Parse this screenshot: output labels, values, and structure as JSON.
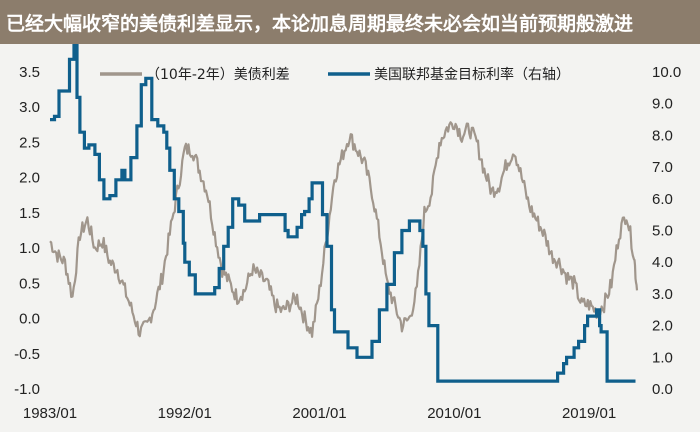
{
  "header": {
    "title": "已经大幅收窄的美债利差显示，本论加息周期最终未必会如当前预期般激进"
  },
  "colors": {
    "header_bg": "#8c7d6c",
    "spread_line": "#a0968c",
    "ffr_line": "#0f5f8c",
    "background": "#f3f3f1"
  },
  "chart_data": {
    "type": "line",
    "title": "",
    "xlabel": "",
    "ylabel": "",
    "x_ticks": [
      "1983/01",
      "1992/01",
      "2001/01",
      "2010/01",
      "2019/01"
    ],
    "x_tick_values": [
      1983.0,
      1992.0,
      2001.0,
      2010.0,
      2019.0
    ],
    "xlim": [
      1983.0,
      2022.4
    ],
    "y_left": {
      "ylim": [
        -1.0,
        3.5
      ],
      "ticks": [
        "3.5",
        "3.0",
        "2.5",
        "2.0",
        "1.5",
        "1.0",
        "0.5",
        "0.0",
        "-0.5",
        "-1.0"
      ],
      "tick_values": [
        3.5,
        3.0,
        2.5,
        2.0,
        1.5,
        1.0,
        0.5,
        0.0,
        -0.5,
        -1.0
      ]
    },
    "y_right": {
      "ylim": [
        0.0,
        10.0
      ],
      "ticks": [
        "10.0",
        "9.0",
        "8.0",
        "7.0",
        "6.0",
        "5.0",
        "4.0",
        "3.0",
        "2.0",
        "1.0",
        "0.0"
      ],
      "tick_values": [
        10.0,
        9.0,
        8.0,
        7.0,
        6.0,
        5.0,
        4.0,
        3.0,
        2.0,
        1.0,
        0.0
      ]
    },
    "legend_position": "top",
    "grid": false,
    "series": [
      {
        "name": "（10年-2年）美债利差",
        "axis": "left",
        "style": "noisy",
        "x": [
          1983.0,
          1983.5,
          1984.0,
          1984.5,
          1985.0,
          1985.5,
          1986.0,
          1986.5,
          1987.0,
          1987.5,
          1988.0,
          1988.5,
          1989.0,
          1989.5,
          1990.0,
          1990.5,
          1991.0,
          1991.5,
          1992.0,
          1992.5,
          1993.0,
          1993.5,
          1994.0,
          1994.5,
          1995.0,
          1995.5,
          1996.0,
          1996.5,
          1997.0,
          1997.5,
          1998.0,
          1998.5,
          1999.0,
          1999.5,
          2000.0,
          2000.5,
          2001.0,
          2001.5,
          2002.0,
          2002.5,
          2003.0,
          2003.5,
          2004.0,
          2004.5,
          2005.0,
          2005.5,
          2006.0,
          2006.5,
          2007.0,
          2007.5,
          2008.0,
          2008.5,
          2009.0,
          2009.5,
          2010.0,
          2010.5,
          2011.0,
          2011.5,
          2012.0,
          2012.5,
          2013.0,
          2013.5,
          2014.0,
          2014.5,
          2015.0,
          2015.5,
          2016.0,
          2016.5,
          2017.0,
          2017.5,
          2018.0,
          2018.5,
          2019.0,
          2019.5,
          2020.0,
          2020.5,
          2021.0,
          2021.5,
          2022.0,
          2022.2
        ],
        "values": [
          1.1,
          0.9,
          0.8,
          0.3,
          1.2,
          1.4,
          1.0,
          1.1,
          0.8,
          0.7,
          0.4,
          0.1,
          -0.2,
          -0.1,
          0.2,
          0.6,
          1.2,
          1.8,
          2.4,
          2.4,
          2.1,
          1.8,
          1.2,
          0.7,
          0.5,
          0.3,
          0.4,
          0.7,
          0.6,
          0.5,
          0.2,
          0.1,
          0.2,
          0.3,
          0.0,
          -0.2,
          0.4,
          1.2,
          2.0,
          2.3,
          2.6,
          2.4,
          2.2,
          1.8,
          1.2,
          0.5,
          0.2,
          -0.1,
          0.0,
          0.4,
          1.5,
          1.8,
          2.5,
          2.7,
          2.8,
          2.6,
          2.7,
          2.5,
          2.1,
          1.8,
          1.9,
          2.2,
          2.4,
          2.0,
          1.6,
          1.4,
          1.2,
          0.9,
          0.8,
          0.6,
          0.5,
          0.2,
          0.2,
          0.1,
          0.2,
          0.5,
          1.2,
          1.5,
          0.9,
          0.4
        ]
      },
      {
        "name": "美国联邦基金目标利率（右轴）",
        "axis": "right",
        "style": "step",
        "x": [
          1983.0,
          1983.3,
          1983.6,
          1984.0,
          1984.3,
          1984.6,
          1984.8,
          1985.0,
          1985.3,
          1985.6,
          1986.0,
          1986.3,
          1986.6,
          1987.0,
          1987.4,
          1987.8,
          1988.0,
          1988.4,
          1988.8,
          1989.1,
          1989.4,
          1989.8,
          1990.2,
          1990.6,
          1990.8,
          1991.0,
          1991.3,
          1991.6,
          1991.9,
          1992.0,
          1992.3,
          1992.7,
          1993.0,
          1993.8,
          1994.0,
          1994.3,
          1994.6,
          1994.9,
          1995.2,
          1995.6,
          1996.0,
          1997.0,
          1998.0,
          1998.7,
          1998.9,
          1999.0,
          1999.5,
          1999.8,
          2000.0,
          2000.3,
          2000.5,
          2001.0,
          2001.2,
          2001.5,
          2001.8,
          2002.0,
          2002.9,
          2003.5,
          2004.0,
          2004.5,
          2005.0,
          2005.5,
          2006.0,
          2006.5,
          2007.0,
          2007.7,
          2007.9,
          2008.1,
          2008.3,
          2008.9,
          2015.9,
          2016.9,
          2017.3,
          2017.5,
          2018.0,
          2018.3,
          2018.7,
          2018.9,
          2019.5,
          2019.7,
          2019.8,
          2020.2,
          2022.1
        ],
        "values": [
          8.5,
          8.6,
          9.4,
          9.4,
          10.4,
          11.3,
          9.2,
          8.1,
          7.6,
          7.7,
          7.4,
          6.6,
          6.0,
          6.1,
          6.6,
          6.9,
          6.6,
          7.3,
          8.3,
          9.6,
          9.8,
          8.5,
          8.3,
          8.1,
          7.6,
          6.9,
          6.0,
          5.6,
          4.6,
          4.0,
          3.6,
          3.0,
          3.0,
          3.0,
          3.2,
          3.8,
          4.5,
          5.1,
          6.0,
          5.8,
          5.3,
          5.5,
          5.5,
          5.0,
          4.8,
          4.8,
          5.1,
          5.5,
          5.6,
          6.0,
          6.5,
          6.5,
          5.5,
          4.5,
          2.5,
          1.8,
          1.3,
          1.0,
          1.0,
          1.5,
          2.5,
          3.3,
          4.3,
          5.0,
          5.3,
          5.0,
          4.5,
          3.0,
          2.0,
          0.25,
          0.25,
          0.5,
          0.8,
          1.0,
          1.3,
          1.5,
          2.0,
          2.3,
          2.5,
          2.0,
          1.8,
          0.25,
          0.25
        ]
      }
    ]
  }
}
